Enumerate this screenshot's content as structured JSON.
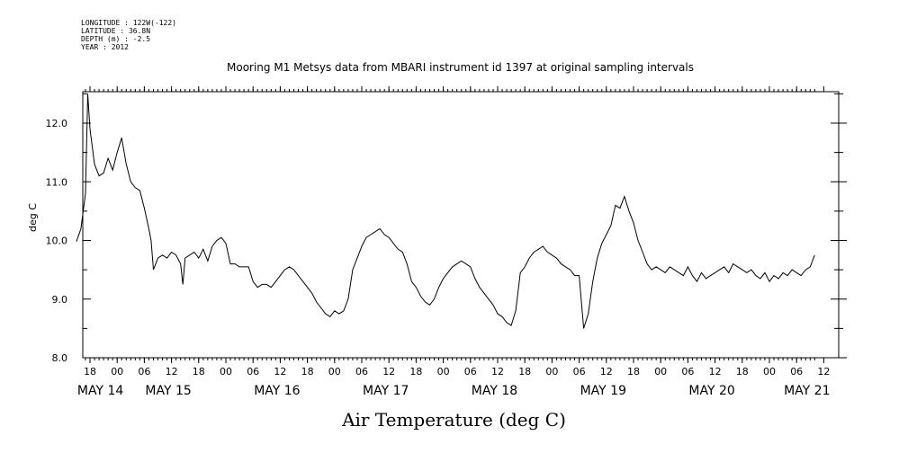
{
  "meta": {
    "lines": [
      "LONGITUDE : 122W(-122)",
      "LATITUDE : 36.8N",
      "DEPTH (m) : -2.5",
      "YEAR : 2012"
    ]
  },
  "title": "Mooring M1 Metsys data from MBARI instrument id 1397 at original sampling intervals",
  "xlabel": "Air Temperature (deg C)",
  "ylabel": "deg C",
  "chart_data": {
    "type": "line",
    "title": "Mooring M1 Metsys data from MBARI instrument id 1397 at original sampling intervals",
    "xlabel": "Air Temperature (deg C)",
    "ylabel": "deg C",
    "x_unit": "hours since May 14 00:00 (2012)",
    "xlim": [
      15,
      178
    ],
    "ylim": [
      8.0,
      12.6
    ],
    "yticks": [
      8.0,
      9.0,
      10.0,
      11.0,
      12.0
    ],
    "ytick_labels": [
      "8.0",
      "9.0",
      "10.0",
      "11.0",
      "12.0"
    ],
    "hour_tick_labels": [
      "18",
      "00",
      "06",
      "12",
      "18",
      "00",
      "06",
      "12",
      "18",
      "00",
      "06",
      "12",
      "18",
      "00",
      "06",
      "12",
      "18",
      "00",
      "06",
      "12",
      "18",
      "00",
      "06",
      "12",
      "18",
      "00",
      "06",
      "12",
      "18",
      "00",
      "06",
      "12"
    ],
    "hour_tick_hours": [
      18,
      24,
      30,
      36,
      42,
      48,
      54,
      60,
      66,
      72,
      78,
      84,
      90,
      96,
      102,
      108,
      114,
      120,
      126,
      132,
      138,
      144,
      150,
      156,
      162,
      168,
      174,
      180,
      186,
      192,
      198,
      204
    ],
    "day_labels": [
      "MAY 14",
      "MAY 15",
      "MAY 16",
      "MAY 17",
      "MAY 18",
      "MAY 19",
      "MAY 20",
      "MAY 21"
    ],
    "day_label_hours": [
      15,
      30,
      54,
      78,
      102,
      126,
      150,
      171
    ],
    "series": [
      {
        "values": [
          [
            15,
            9.98
          ],
          [
            16,
            10.2
          ],
          [
            17,
            10.8
          ],
          [
            17.5,
            12.5
          ],
          [
            18,
            11.9
          ],
          [
            19,
            11.3
          ],
          [
            20,
            11.1
          ],
          [
            21,
            11.15
          ],
          [
            22,
            11.4
          ],
          [
            23,
            11.2
          ],
          [
            24,
            11.5
          ],
          [
            25,
            11.75
          ],
          [
            26,
            11.3
          ],
          [
            27,
            11.0
          ],
          [
            28,
            10.9
          ],
          [
            29,
            10.85
          ],
          [
            30,
            10.55
          ],
          [
            31,
            10.2
          ],
          [
            31.5,
            10.0
          ],
          [
            32,
            9.5
          ],
          [
            33,
            9.7
          ],
          [
            34,
            9.75
          ],
          [
            35,
            9.7
          ],
          [
            36,
            9.8
          ],
          [
            37,
            9.75
          ],
          [
            38,
            9.6
          ],
          [
            38.5,
            9.25
          ],
          [
            39,
            9.7
          ],
          [
            40,
            9.75
          ],
          [
            41,
            9.8
          ],
          [
            42,
            9.7
          ],
          [
            43,
            9.85
          ],
          [
            44,
            9.65
          ],
          [
            45,
            9.9
          ],
          [
            46,
            10.0
          ],
          [
            47,
            10.05
          ],
          [
            48,
            9.95
          ],
          [
            49,
            9.6
          ],
          [
            50,
            9.6
          ],
          [
            51,
            9.55
          ],
          [
            52,
            9.55
          ],
          [
            53,
            9.55
          ],
          [
            54,
            9.3
          ],
          [
            55,
            9.2
          ],
          [
            56,
            9.25
          ],
          [
            57,
            9.25
          ],
          [
            58,
            9.2
          ],
          [
            59,
            9.3
          ],
          [
            60,
            9.4
          ],
          [
            61,
            9.5
          ],
          [
            62,
            9.55
          ],
          [
            63,
            9.5
          ],
          [
            64,
            9.4
          ],
          [
            65,
            9.3
          ],
          [
            66,
            9.2
          ],
          [
            67,
            9.1
          ],
          [
            68,
            8.95
          ],
          [
            69,
            8.85
          ],
          [
            70,
            8.75
          ],
          [
            71,
            8.7
          ],
          [
            72,
            8.8
          ],
          [
            73,
            8.75
          ],
          [
            74,
            8.8
          ],
          [
            75,
            9.0
          ],
          [
            76,
            9.5
          ],
          [
            77,
            9.7
          ],
          [
            78,
            9.9
          ],
          [
            79,
            10.05
          ],
          [
            80,
            10.1
          ],
          [
            81,
            10.15
          ],
          [
            82,
            10.2
          ],
          [
            83,
            10.1
          ],
          [
            84,
            10.05
          ],
          [
            85,
            9.95
          ],
          [
            86,
            9.85
          ],
          [
            87,
            9.8
          ],
          [
            88,
            9.6
          ],
          [
            89,
            9.3
          ],
          [
            90,
            9.2
          ],
          [
            91,
            9.05
          ],
          [
            92,
            8.95
          ],
          [
            93,
            8.9
          ],
          [
            94,
            9.0
          ],
          [
            95,
            9.2
          ],
          [
            96,
            9.35
          ],
          [
            97,
            9.45
          ],
          [
            98,
            9.55
          ],
          [
            99,
            9.6
          ],
          [
            100,
            9.65
          ],
          [
            101,
            9.6
          ],
          [
            102,
            9.55
          ],
          [
            103,
            9.35
          ],
          [
            104,
            9.2
          ],
          [
            105,
            9.1
          ],
          [
            106,
            9.0
          ],
          [
            107,
            8.9
          ],
          [
            108,
            8.75
          ],
          [
            109,
            8.7
          ],
          [
            110,
            8.6
          ],
          [
            111,
            8.55
          ],
          [
            112,
            8.8
          ],
          [
            113,
            9.45
          ],
          [
            114,
            9.55
          ],
          [
            115,
            9.7
          ],
          [
            116,
            9.8
          ],
          [
            117,
            9.85
          ],
          [
            118,
            9.9
          ],
          [
            119,
            9.8
          ],
          [
            120,
            9.75
          ],
          [
            121,
            9.7
          ],
          [
            122,
            9.6
          ],
          [
            123,
            9.55
          ],
          [
            124,
            9.5
          ],
          [
            125,
            9.4
          ],
          [
            126,
            9.4
          ],
          [
            127,
            8.5
          ],
          [
            128,
            8.75
          ],
          [
            129,
            9.3
          ],
          [
            130,
            9.7
          ],
          [
            131,
            9.95
          ],
          [
            132,
            10.1
          ],
          [
            133,
            10.25
          ],
          [
            134,
            10.6
          ],
          [
            135,
            10.55
          ],
          [
            136,
            10.75
          ],
          [
            137,
            10.5
          ],
          [
            138,
            10.3
          ],
          [
            139,
            10.0
          ],
          [
            140,
            9.8
          ],
          [
            141,
            9.6
          ],
          [
            142,
            9.5
          ],
          [
            143,
            9.55
          ],
          [
            144,
            9.5
          ],
          [
            145,
            9.45
          ],
          [
            146,
            9.55
          ],
          [
            147,
            9.5
          ],
          [
            148,
            9.45
          ],
          [
            149,
            9.4
          ],
          [
            150,
            9.55
          ],
          [
            151,
            9.4
          ],
          [
            152,
            9.3
          ],
          [
            153,
            9.45
          ],
          [
            154,
            9.35
          ],
          [
            155,
            9.4
          ],
          [
            156,
            9.45
          ],
          [
            157,
            9.5
          ],
          [
            158,
            9.55
          ],
          [
            159,
            9.45
          ],
          [
            160,
            9.6
          ],
          [
            161,
            9.55
          ],
          [
            162,
            9.5
          ],
          [
            163,
            9.45
          ],
          [
            164,
            9.5
          ],
          [
            165,
            9.4
          ],
          [
            166,
            9.35
          ],
          [
            167,
            9.45
          ],
          [
            168,
            9.3
          ],
          [
            169,
            9.4
          ],
          [
            170,
            9.35
          ],
          [
            171,
            9.45
          ],
          [
            172,
            9.4
          ],
          [
            173,
            9.5
          ],
          [
            174,
            9.45
          ],
          [
            175,
            9.4
          ],
          [
            176,
            9.5
          ],
          [
            177,
            9.55
          ],
          [
            178,
            9.75
          ]
        ]
      }
    ]
  }
}
